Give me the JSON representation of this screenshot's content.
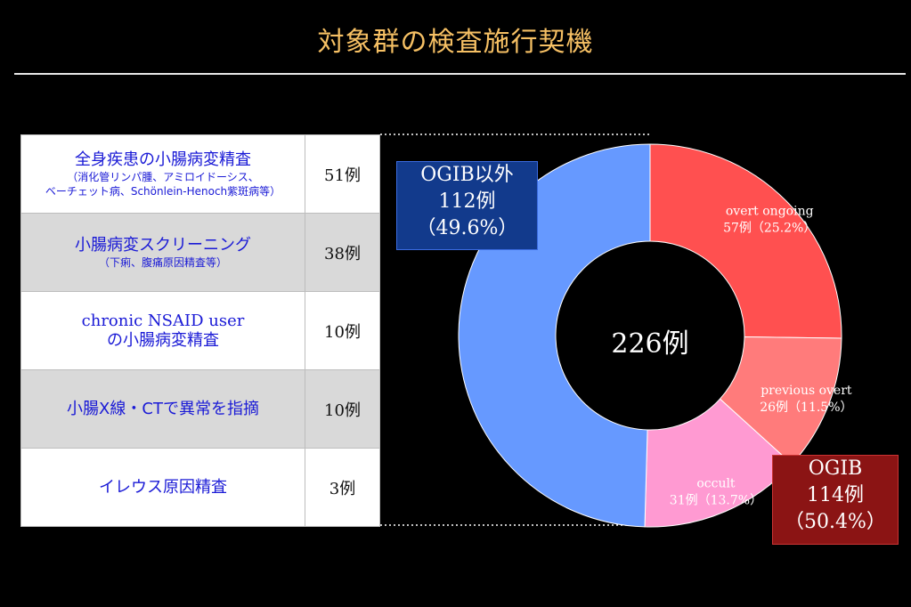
{
  "title": "対象群の検査施行契機",
  "table": {
    "rows": [
      {
        "main": "全身疾患の小腸病変精査",
        "sub1": "（消化管リンパ腫、アミロイドーシス、",
        "sub2": "ベーチェット病、Schönlein-Henoch紫斑病等）",
        "count": "51例"
      },
      {
        "main": "小腸病変スクリーニング",
        "sub1": "（下痢、腹痛原因精査等）",
        "count": "38例"
      },
      {
        "main": "chronic NSAID user",
        "main2": "の小腸病変精査",
        "count": "10例"
      },
      {
        "main": "小腸X線・CTで異常を指摘",
        "count": "10例"
      },
      {
        "main": "イレウス原因精査",
        "count": "3例"
      }
    ]
  },
  "chart_data": {
    "type": "pie",
    "center_label": "226例",
    "slices": [
      {
        "label": "overt ongoing",
        "value_text": "57例（25.2%）",
        "value": 57,
        "color": "#ff5050"
      },
      {
        "label": "previous overt",
        "value_text": "26例（11.5%）",
        "value": 26,
        "color": "#ff7b7b"
      },
      {
        "label": "occult",
        "value_text": "31例（13.7%）",
        "value": 31,
        "color": "#ff9ad2"
      },
      {
        "label": "OGIB以外",
        "value": 112,
        "color": "#6699ff"
      }
    ],
    "groups": {
      "non_ogib": {
        "line1": "OGIB以外",
        "line2": "112例",
        "line3": "（49.6%）"
      },
      "ogib": {
        "line1": "OGIB",
        "line2": "114例",
        "line3": "（50.4%）"
      }
    }
  }
}
